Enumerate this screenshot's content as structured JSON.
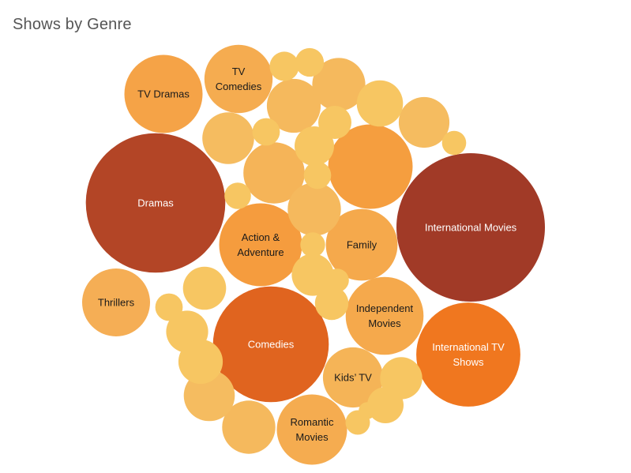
{
  "title": "Shows by Genre",
  "chart_data": {
    "type": "packed-bubble",
    "title": "Shows by Genre",
    "bubbles": [
      {
        "name": "Dramas",
        "label": [
          "Dramas"
        ],
        "color": "#b34526",
        "text_color": "#ffffff",
        "value": 2427
      },
      {
        "name": "International Movies",
        "label": [
          "International Movies"
        ],
        "color": "#a13a27",
        "text_color": "#ffffff",
        "value": 2752
      },
      {
        "name": "Comedies",
        "label": [
          "Comedies"
        ],
        "color": "#e0641f",
        "text_color": "#ffffff",
        "value": 1674
      },
      {
        "name": "International TV Shows",
        "label": [
          "International TV",
          "Shows"
        ],
        "color": "#f0771f",
        "text_color": "#ffffff",
        "value": 1351
      },
      {
        "name": "Action & Adventure",
        "label": [
          "Action &",
          "Adventure"
        ],
        "color": "#f59c3e",
        "text_color": "#1a1a1a",
        "value": 859
      },
      {
        "name": "Family",
        "label": [
          "Family"
        ],
        "color": "#f5a94c",
        "text_color": "#1a1a1a",
        "value": 641
      },
      {
        "name": "Independent Movies",
        "label": [
          "Independent",
          "Movies"
        ],
        "color": "#f5a94c",
        "text_color": "#1a1a1a",
        "value": 756
      },
      {
        "name": "TV Dramas",
        "label": [
          "TV Dramas"
        ],
        "color": "#f5a347",
        "text_color": "#1a1a1a",
        "value": 763
      },
      {
        "name": "TV Comedies",
        "label": [
          "TV",
          "Comedies"
        ],
        "color": "#f5ac50",
        "text_color": "#1a1a1a",
        "value": 581
      },
      {
        "name": "Thrillers",
        "label": [
          "Thrillers"
        ],
        "color": "#f5ae55",
        "text_color": "#1a1a1a",
        "value": 577
      },
      {
        "name": "Kids' TV",
        "label": [
          "Kids’ TV"
        ],
        "color": "#f5b457",
        "text_color": "#1a1a1a",
        "value": 451
      },
      {
        "name": "Romantic Movies",
        "label": [
          "Romantic",
          "Movies"
        ],
        "color": "#f5ac50",
        "text_color": "#1a1a1a",
        "value": 616
      },
      {
        "name": "",
        "label": [],
        "color": "#f59e3f",
        "text_color": "#1a1a1a",
        "value": 890
      },
      {
        "name": "",
        "label": [],
        "color": "#f5b458",
        "text_color": "#1a1a1a",
        "value": 468
      },
      {
        "name": "",
        "label": [],
        "color": "#f5b95d",
        "text_color": "#1a1a1a",
        "value": 363
      },
      {
        "name": "",
        "label": [],
        "color": "#f5bc60",
        "text_color": "#1a1a1a",
        "value": 320
      },
      {
        "name": "",
        "label": [],
        "color": "#f5bc60",
        "text_color": "#1a1a1a",
        "value": 335
      },
      {
        "name": "",
        "label": [],
        "color": "#f7c662",
        "text_color": "#1a1a1a",
        "value": 232
      },
      {
        "name": "",
        "label": [],
        "color": "#f5b95d",
        "text_color": "#1a1a1a",
        "value": 351
      },
      {
        "name": "",
        "label": [],
        "color": "#f5b95d",
        "text_color": "#1a1a1a",
        "value": 353
      },
      {
        "name": "",
        "label": [],
        "color": "#f5b95d",
        "text_color": "#1a1a1a",
        "value": 353
      },
      {
        "name": "",
        "label": [],
        "color": "#f7c662",
        "text_color": "#1a1a1a",
        "value": 268
      },
      {
        "name": "",
        "label": [],
        "color": "#f5bc60",
        "text_color": "#1a1a1a",
        "value": 324
      },
      {
        "name": "",
        "label": [],
        "color": "#f7c662",
        "text_color": "#1a1a1a",
        "value": 220
      },
      {
        "name": "",
        "label": [],
        "color": "#f7c662",
        "text_color": "#1a1a1a",
        "value": 220
      },
      {
        "name": "",
        "label": [],
        "color": "#f7c662",
        "text_color": "#1a1a1a",
        "value": 246
      },
      {
        "name": "",
        "label": [],
        "color": "#f7c662",
        "text_color": "#1a1a1a",
        "value": 222
      },
      {
        "name": "",
        "label": [],
        "color": "#f7c662",
        "text_color": "#1a1a1a",
        "value": 194
      },
      {
        "name": "",
        "label": [],
        "color": "#f7c662",
        "text_color": "#1a1a1a",
        "value": 165
      },
      {
        "name": "",
        "label": [],
        "color": "#f7c662",
        "text_color": "#1a1a1a",
        "value": 138
      },
      {
        "name": "",
        "label": [],
        "color": "#f7c662",
        "text_color": "#1a1a1a",
        "value": 140
      },
      {
        "name": "",
        "label": [],
        "color": "#f7c662",
        "text_color": "#1a1a1a",
        "value": 108
      },
      {
        "name": "",
        "label": [],
        "color": "#f7c662",
        "text_color": "#1a1a1a",
        "value": 102
      },
      {
        "name": "",
        "label": [],
        "color": "#f7c662",
        "text_color": "#1a1a1a",
        "value": 93
      },
      {
        "name": "",
        "label": [],
        "color": "#f7c662",
        "text_color": "#1a1a1a",
        "value": 94
      },
      {
        "name": "",
        "label": [],
        "color": "#f7c662",
        "text_color": "#1a1a1a",
        "value": 94
      },
      {
        "name": "",
        "label": [],
        "color": "#f7c662",
        "text_color": "#1a1a1a",
        "value": 88
      },
      {
        "name": "",
        "label": [],
        "color": "#f7c662",
        "text_color": "#1a1a1a",
        "value": 77
      },
      {
        "name": "",
        "label": [],
        "color": "#f7c662",
        "text_color": "#1a1a1a",
        "value": 75
      },
      {
        "name": "",
        "label": [],
        "color": "#f7c662",
        "text_color": "#1a1a1a",
        "value": 73
      },
      {
        "name": "",
        "label": [],
        "color": "#f7c662",
        "text_color": "#1a1a1a",
        "value": 68
      },
      {
        "name": "",
        "label": [],
        "color": "#f7c662",
        "text_color": "#1a1a1a",
        "value": 36
      },
      {
        "name": "",
        "label": [],
        "color": "#f7c662",
        "text_color": "#1a1a1a",
        "value": 32
      },
      {
        "name": "",
        "label": [],
        "color": "#f7c662",
        "text_color": "#1a1a1a",
        "value": 20
      }
    ]
  }
}
